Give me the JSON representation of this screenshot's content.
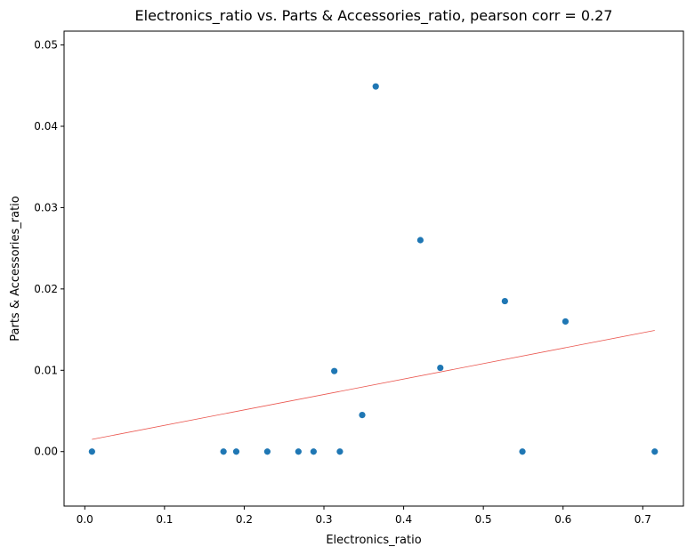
{
  "chart_data": {
    "type": "scatter",
    "title": "Electronics_ratio vs. Parts & Accessories_ratio, pearson corr = 0.27",
    "xlabel": "Electronics_ratio",
    "ylabel": "Parts & Accessories_ratio",
    "xlim": [
      -0.026,
      0.751
    ],
    "ylim": [
      -0.0067,
      0.0517
    ],
    "xticks": [
      "0.0",
      "0.1",
      "0.2",
      "0.3",
      "0.4",
      "0.5",
      "0.6",
      "0.7"
    ],
    "xtick_values": [
      0.0,
      0.1,
      0.2,
      0.3,
      0.4,
      0.5,
      0.6,
      0.7
    ],
    "yticks": [
      "0.00",
      "0.01",
      "0.02",
      "0.03",
      "0.04",
      "0.05"
    ],
    "ytick_values": [
      0.0,
      0.01,
      0.02,
      0.03,
      0.04,
      0.05
    ],
    "grid": false,
    "colors": {
      "points": "#1f77b4",
      "trendline": "#e8413a"
    },
    "points": [
      {
        "x": 0.009,
        "y": 0.0
      },
      {
        "x": 0.174,
        "y": 0.0
      },
      {
        "x": 0.19,
        "y": 0.0
      },
      {
        "x": 0.229,
        "y": 0.0
      },
      {
        "x": 0.268,
        "y": 0.0
      },
      {
        "x": 0.287,
        "y": 0.0
      },
      {
        "x": 0.313,
        "y": 0.0099
      },
      {
        "x": 0.32,
        "y": 0.0
      },
      {
        "x": 0.348,
        "y": 0.0045
      },
      {
        "x": 0.365,
        "y": 0.0449
      },
      {
        "x": 0.421,
        "y": 0.026
      },
      {
        "x": 0.446,
        "y": 0.0103
      },
      {
        "x": 0.527,
        "y": 0.0185
      },
      {
        "x": 0.549,
        "y": 0.0
      },
      {
        "x": 0.603,
        "y": 0.016
      },
      {
        "x": 0.715,
        "y": 0.0
      }
    ],
    "trendline": {
      "x": [
        0.009,
        0.715
      ],
      "y": [
        0.0015,
        0.0149
      ]
    }
  }
}
